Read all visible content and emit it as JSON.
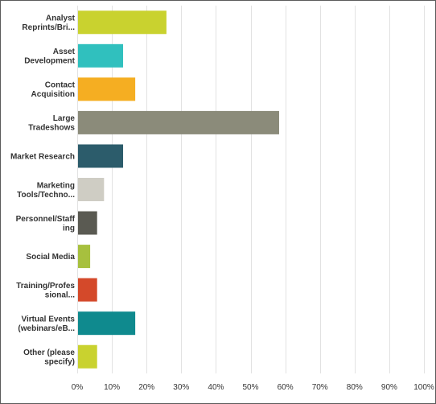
{
  "chart_data": {
    "type": "bar",
    "orientation": "horizontal",
    "categories": [
      [
        "Analyst",
        "Reprints/Bri..."
      ],
      [
        "Asset",
        "Development"
      ],
      [
        "Contact",
        "Acquisition"
      ],
      [
        "Large",
        "Tradeshows"
      ],
      [
        "Market Research"
      ],
      [
        "Marketing",
        "Tools/Techno..."
      ],
      [
        "Personnel/Staff",
        "ing"
      ],
      [
        "Social Media"
      ],
      [
        "Training/Profes",
        "sional..."
      ],
      [
        "Virtual Events",
        "(webinars/eB..."
      ],
      [
        "Other (please",
        "specify)"
      ]
    ],
    "values": [
      25.5,
      13,
      16.5,
      58,
      13,
      7.5,
      5.5,
      3.5,
      5.5,
      16.5,
      5.5
    ],
    "colors": [
      "#c9d22f",
      "#30c0be",
      "#f5ae22",
      "#8b8b7a",
      "#2c5c6b",
      "#cfcdc4",
      "#5a5a52",
      "#a7c03e",
      "#d4492a",
      "#0f8a8e",
      "#c9d22f"
    ],
    "xlim": [
      0,
      100
    ],
    "xticks": [
      "0%",
      "10%",
      "20%",
      "30%",
      "40%",
      "50%",
      "60%",
      "70%",
      "80%",
      "90%",
      "100%"
    ],
    "grid": true,
    "legend": "none",
    "title": "",
    "xlabel": "",
    "ylabel": ""
  }
}
